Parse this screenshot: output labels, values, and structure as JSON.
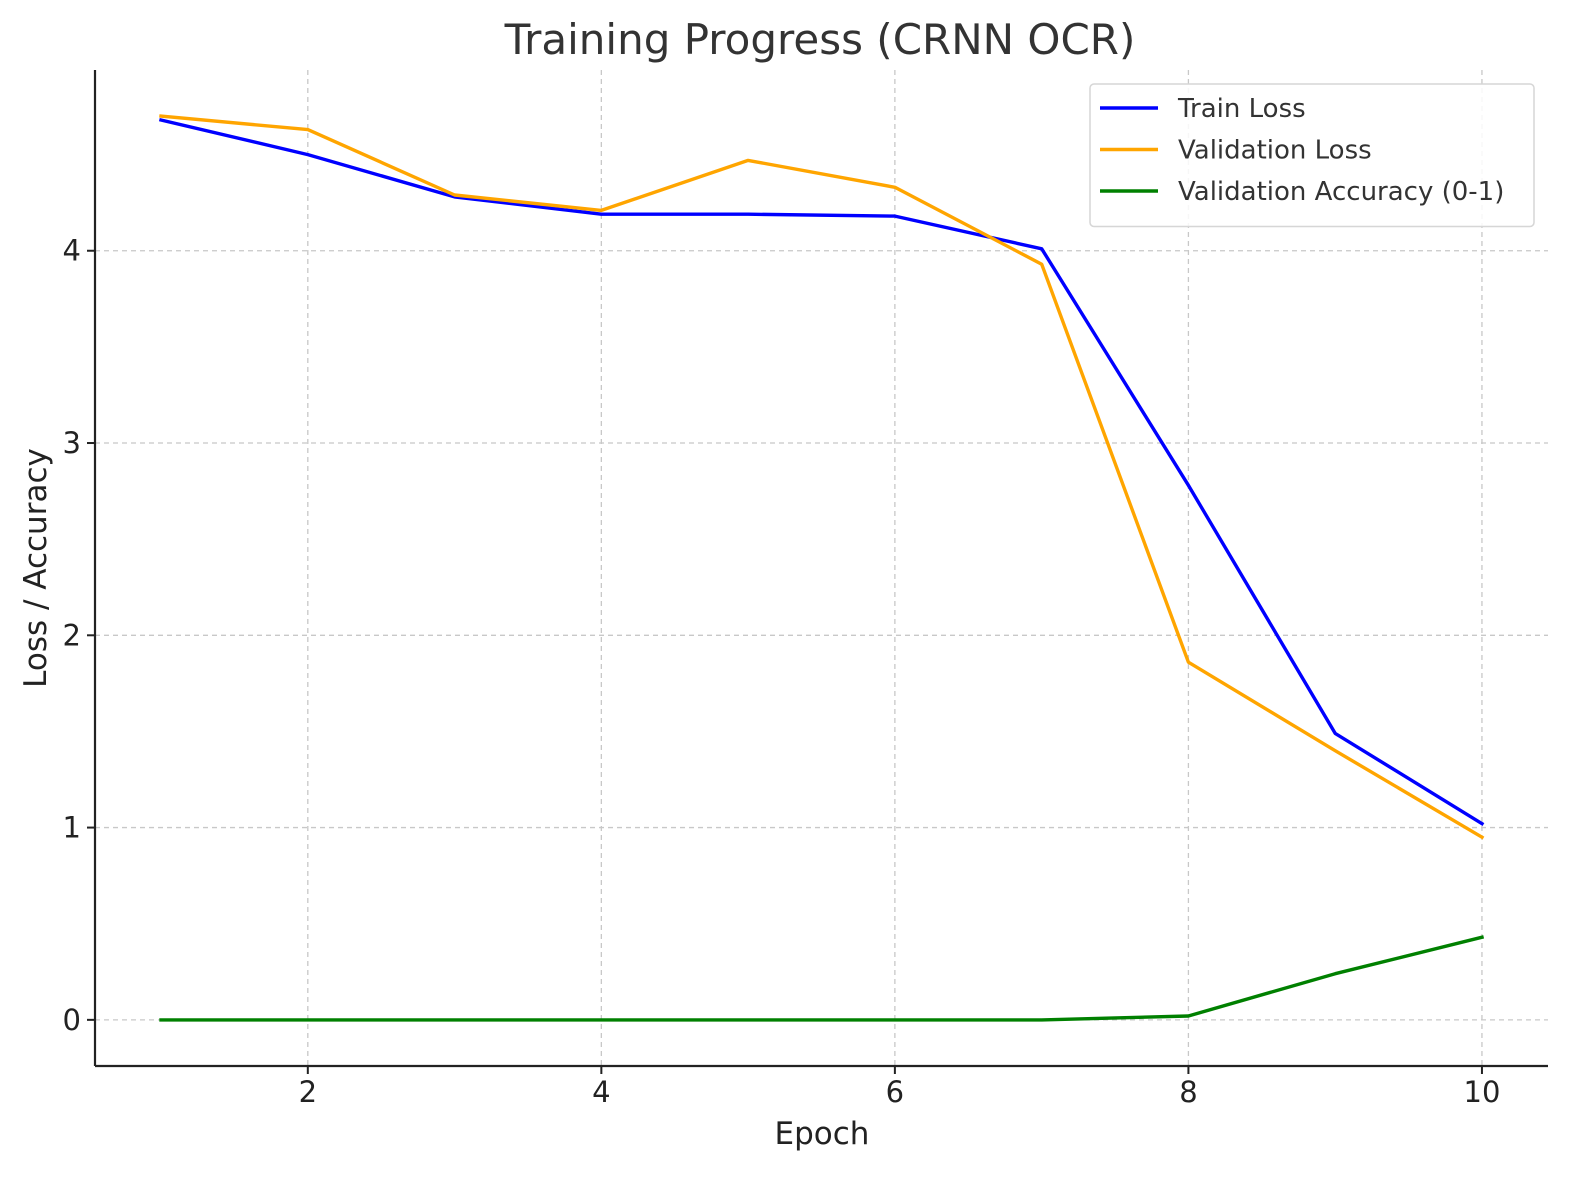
{
  "chart_data": {
    "type": "line",
    "title": "Training Progress (CRNN OCR)",
    "xlabel": "Epoch",
    "ylabel": "Loss / Accuracy",
    "x": [
      1,
      2,
      3,
      4,
      5,
      6,
      7,
      8,
      9,
      10
    ],
    "xlim": [
      0.55,
      10.45
    ],
    "ylim": [
      -0.24,
      4.94
    ],
    "xticks": [
      2,
      4,
      6,
      8,
      10
    ],
    "yticks": [
      0,
      1,
      2,
      3,
      4
    ],
    "grid": true,
    "legend_position": "top-right",
    "series": [
      {
        "name": "Train Loss",
        "color": "#0000ff",
        "values": [
          4.68,
          4.5,
          4.28,
          4.19,
          4.19,
          4.18,
          4.01,
          2.78,
          1.49,
          1.02
        ]
      },
      {
        "name": "Validation Loss",
        "color": "#ffa500",
        "values": [
          4.7,
          4.63,
          4.29,
          4.21,
          4.47,
          4.33,
          3.93,
          1.86,
          1.4,
          0.95
        ]
      },
      {
        "name": "Validation Accuracy (0-1)",
        "color": "#008000",
        "values": [
          0.0,
          0.0,
          0.0,
          0.0,
          0.0,
          0.0,
          0.0,
          0.02,
          0.24,
          0.43
        ]
      }
    ]
  }
}
